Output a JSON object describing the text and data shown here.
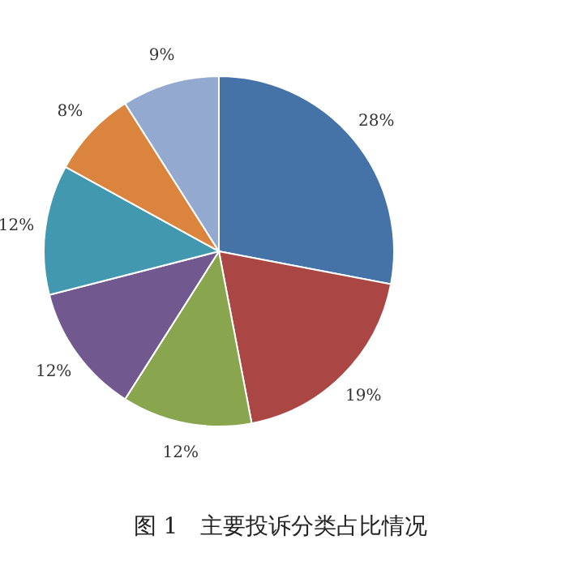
{
  "chart_data": {
    "type": "pie",
    "title": "图 1　主要投诉分类占比情况",
    "categories": [
      null,
      null,
      null,
      null,
      null,
      null,
      null
    ],
    "values": [
      28,
      19,
      12,
      12,
      12,
      8,
      9
    ],
    "value_labels": [
      "28%",
      "19%",
      "12%",
      "12%",
      "12%",
      "8%",
      "9%"
    ],
    "colors": [
      "#4573a8",
      "#aa4643",
      "#89a54e",
      "#71588f",
      "#4198af",
      "#db843d",
      "#93a9cf"
    ]
  }
}
